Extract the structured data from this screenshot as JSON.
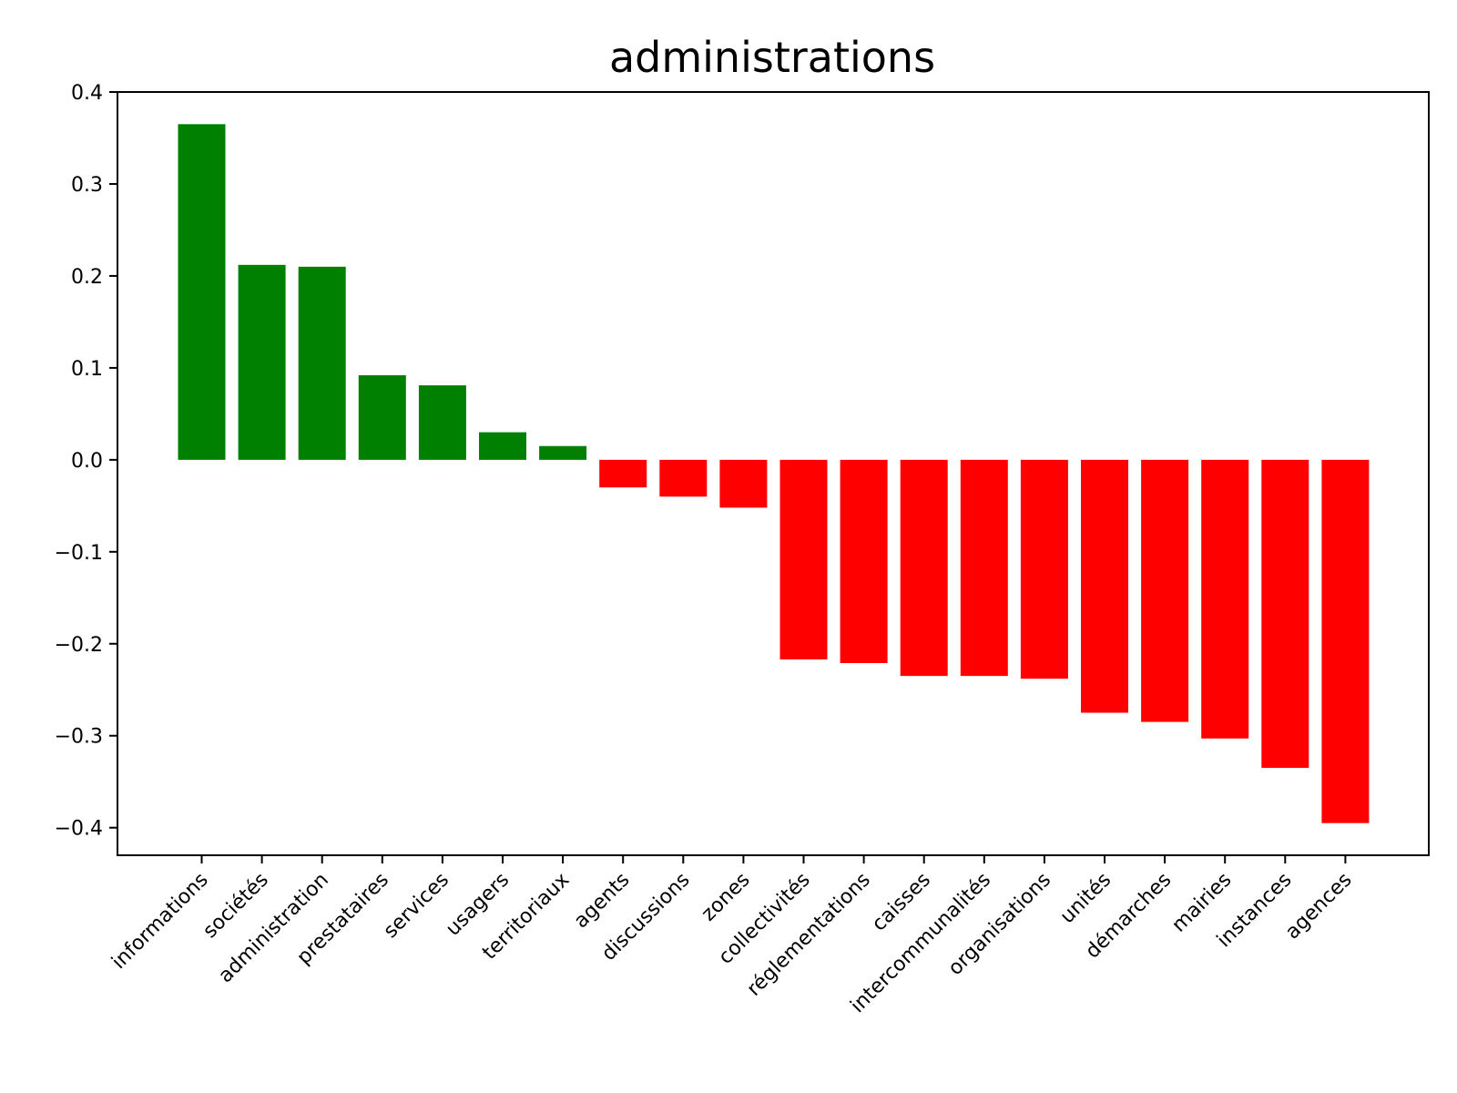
{
  "chart_data": {
    "type": "bar",
    "title": "administrations",
    "xlabel": "",
    "ylabel": "",
    "ylim": [
      -0.43,
      0.4
    ],
    "yticks": [
      0.4,
      0.3,
      0.2,
      0.1,
      0.0,
      -0.1,
      -0.2,
      -0.3,
      -0.4
    ],
    "ytick_labels": [
      "0.4",
      "0.3",
      "0.2",
      "0.1",
      "0.0",
      "−0.1",
      "−0.2",
      "−0.3",
      "−0.4"
    ],
    "grid": false,
    "legend": "none",
    "categories": [
      "informations",
      "sociétés",
      "administration",
      "prestataires",
      "services",
      "usagers",
      "territoriaux",
      "agents",
      "discussions",
      "zones",
      "collectivités",
      "réglementations",
      "caisses",
      "intercommunalités",
      "organisations",
      "unités",
      "démarches",
      "mairies",
      "instances",
      "agences"
    ],
    "values": [
      0.365,
      0.212,
      0.21,
      0.092,
      0.081,
      0.03,
      0.015,
      -0.03,
      -0.04,
      -0.052,
      -0.217,
      -0.221,
      -0.235,
      -0.235,
      -0.238,
      -0.275,
      -0.285,
      -0.303,
      -0.335,
      -0.395
    ],
    "colors": {
      "positive": "#008000",
      "negative": "#ff0000",
      "axis": "#000000"
    }
  }
}
